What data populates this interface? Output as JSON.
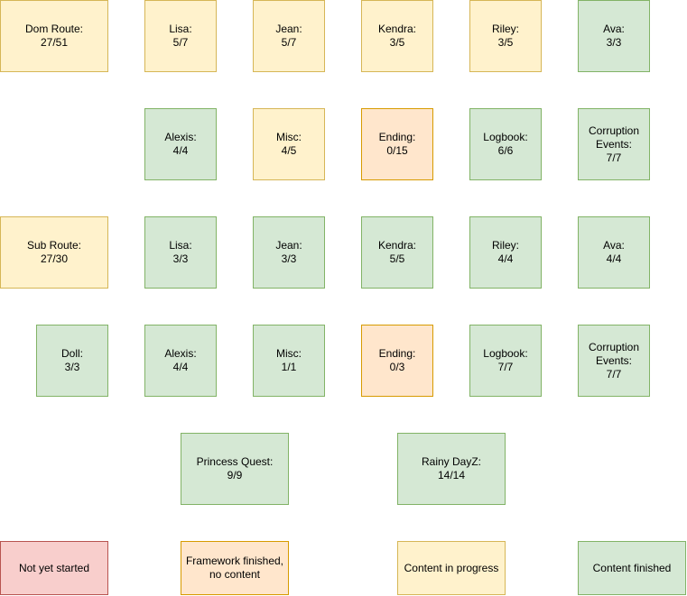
{
  "colors": {
    "not_started": "#f8cecc",
    "framework": "#ffe6cc",
    "in_progress": "#fff2cc",
    "finished": "#d5e8d4"
  },
  "rows": {
    "dom": {
      "route": "Dom Route:\n27/51",
      "lisa": "Lisa:\n5/7",
      "jean": "Jean:\n5/7",
      "kendra": "Kendra:\n3/5",
      "riley": "Riley:\n3/5",
      "ava": "Ava:\n3/3"
    },
    "dom2": {
      "alexis": "Alexis:\n4/4",
      "misc": "Misc:\n4/5",
      "ending": "Ending:\n0/15",
      "logbook": "Logbook:\n6/6",
      "corruption": "Corruption\nEvents:\n7/7"
    },
    "sub": {
      "route": "Sub Route:\n27/30",
      "lisa": "Lisa:\n3/3",
      "jean": "Jean:\n3/3",
      "kendra": "Kendra:\n5/5",
      "riley": "Riley:\n4/4",
      "ava": "Ava:\n4/4"
    },
    "sub2": {
      "doll": "Doll:\n3/3",
      "alexis": "Alexis:\n4/4",
      "misc": "Misc:\n1/1",
      "ending": "Ending:\n0/3",
      "logbook": "Logbook:\n7/7",
      "corruption": "Corruption\nEvents:\n7/7"
    },
    "quests": {
      "princess": "Princess Quest:\n9/9",
      "rainy": "Rainy DayZ:\n14/14"
    }
  },
  "legend": {
    "not_started": "Not yet started",
    "framework": "Framework finished,\nno content",
    "in_progress": "Content in progress",
    "finished": "Content finished"
  }
}
